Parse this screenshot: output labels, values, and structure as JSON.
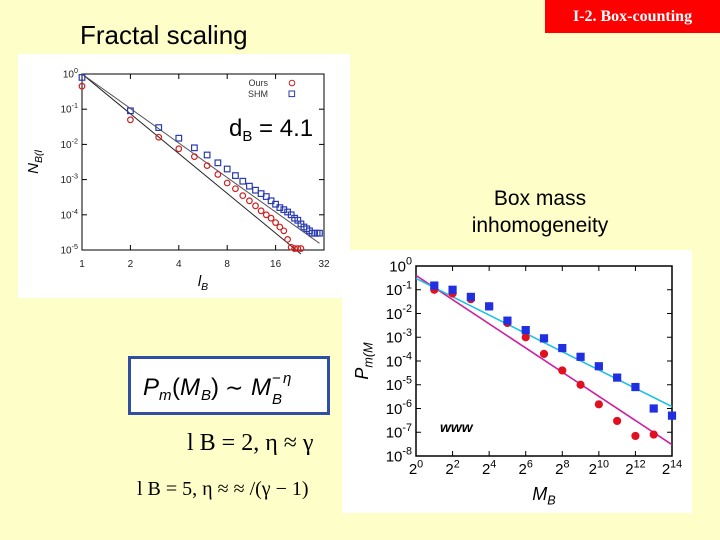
{
  "slide": {
    "section_badge": "I-2. Box-counting",
    "title": "Fractal scaling",
    "dimension_label": {
      "prefix": "d",
      "sub": "B",
      "rest": " = 4.1"
    },
    "box_mass_lines": [
      "Box mass",
      "inhomogeneity"
    ],
    "equation_lines": [
      "l  B = 2,   η ≈  γ",
      "l  B = 5,   η ≈   ≈   /(γ  − 1)"
    ],
    "www_text": "www"
  },
  "chart_data": [
    {
      "type": "scatter",
      "xlabel": "l_B",
      "ylabel": "N_B(l_B)/N",
      "x_scale": "log2",
      "y_scale": "log10",
      "xlim": [
        1,
        32
      ],
      "ylim": [
        1e-05,
        1
      ],
      "x_ticks": [
        "1",
        "2",
        "4",
        "8",
        "16",
        "32"
      ],
      "y_ticks": [
        "10^0",
        "10^-1",
        "10^-2",
        "10^-3",
        "10^-4",
        "10^-5"
      ],
      "legend": {
        "placement": "top-right",
        "entries": [
          "Ours",
          "SHM"
        ]
      },
      "series": [
        {
          "name": "Ours",
          "color": "#d02020",
          "marker": "circle",
          "x": [
            1,
            2,
            3,
            4,
            5,
            6,
            7,
            8,
            9,
            10,
            11,
            12,
            13,
            14,
            15,
            16,
            17,
            18,
            19,
            20,
            21,
            22,
            23
          ],
          "y": [
            0.45,
            0.05,
            0.016,
            0.0075,
            0.0045,
            0.0025,
            0.0014,
            0.0008,
            0.00055,
            0.00035,
            0.00025,
            0.00018,
            0.00013,
            0.0001,
            8e-05,
            6e-05,
            4.5e-05,
            3.5e-05,
            2e-05,
            1.2e-05,
            1.1e-05,
            1.1e-05,
            1.1e-05
          ]
        },
        {
          "name": "SHM",
          "color": "#2a3ab0",
          "marker": "square",
          "x": [
            1,
            2,
            3,
            4,
            5,
            6,
            7,
            8,
            9,
            10,
            11,
            12,
            13,
            14,
            15,
            16,
            17,
            18,
            19,
            20,
            21,
            22,
            23,
            24,
            25,
            26,
            27,
            28,
            29,
            30
          ],
          "y": [
            0.8,
            0.09,
            0.03,
            0.015,
            0.008,
            0.005,
            0.003,
            0.002,
            0.0013,
            0.0009,
            0.00065,
            0.0005,
            0.0004,
            0.00033,
            0.00025,
            0.0002,
            0.00016,
            0.00014,
            0.00012,
            0.0001,
            8e-05,
            7e-05,
            5.5e-05,
            4.5e-05,
            4e-05,
            3.5e-05,
            3e-05,
            3e-05,
            3e-05,
            3e-05
          ]
        }
      ],
      "fit_lines": [
        {
          "x": [
            1,
            23
          ],
          "y": [
            1.0,
            7.7e-06
          ],
          "color": "#222222"
        },
        {
          "x": [
            1,
            30
          ],
          "y": [
            1.0,
            1.55e-05
          ],
          "color": "#555555"
        }
      ]
    },
    {
      "type": "scatter",
      "xlabel": "M_B",
      "ylabel": "P_m(M_B)",
      "x_scale": "log2",
      "y_scale": "log10",
      "xlim": [
        1,
        16384
      ],
      "ylim": [
        1e-08,
        1
      ],
      "x_ticks": [
        "2^0",
        "2^2",
        "2^4",
        "2^6",
        "2^8",
        "2^10",
        "2^12",
        "2^14"
      ],
      "y_ticks": [
        "10^0",
        "10^-1",
        "10^-2",
        "10^-3",
        "10^-4",
        "10^-5",
        "10^-6",
        "10^-7",
        "10^-8"
      ],
      "series": [
        {
          "color": "#e01020",
          "marker": "circle",
          "x": [
            2,
            4,
            8,
            16,
            32,
            64,
            128,
            256,
            512,
            1024,
            2048,
            4096,
            8192
          ],
          "y": [
            0.1,
            0.07,
            0.04,
            0.02,
            0.004,
            0.001,
            0.0002,
            4e-05,
            1e-05,
            1.5e-06,
            3e-07,
            7e-08,
            8e-08
          ]
        },
        {
          "color": "#2030e0",
          "marker": "square",
          "x": [
            2,
            4,
            8,
            16,
            32,
            64,
            128,
            256,
            512,
            1024,
            2048,
            4096,
            8192,
            16384
          ],
          "y": [
            0.15,
            0.1,
            0.05,
            0.02,
            0.005,
            0.002,
            0.0009,
            0.00035,
            0.00015,
            6e-05,
            2e-05,
            8e-06,
            1e-06,
            5e-07
          ]
        }
      ],
      "fit_lines": [
        {
          "x": [
            1,
            16384
          ],
          "y": [
            0.4,
            3e-08
          ],
          "color": "#cc20a0"
        },
        {
          "x": [
            1,
            16384
          ],
          "y": [
            0.3,
            1.2e-06
          ],
          "color": "#20c0e0"
        }
      ]
    }
  ]
}
